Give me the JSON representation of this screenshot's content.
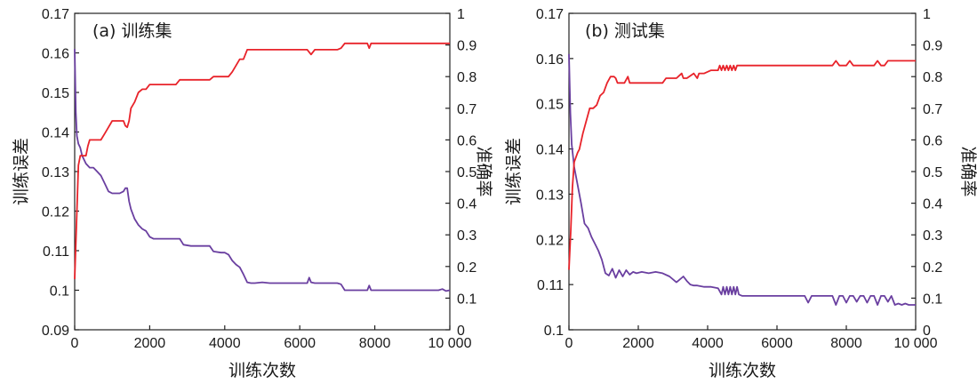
{
  "colors": {
    "error": "#6a3fa0",
    "accuracy": "#e8232a"
  },
  "chart_data": [
    {
      "type": "line",
      "title": "(a) 训练集",
      "xlabel": "训练次数",
      "ylabel_left": "训练误差",
      "ylabel_right": "准确率",
      "xlim": [
        0,
        10000
      ],
      "ylim_left": [
        0.09,
        0.17
      ],
      "ylim_right": [
        0,
        1
      ],
      "x_ticks": [
        "0",
        "2000",
        "4000",
        "6000",
        "8000",
        "10 000"
      ],
      "y_left_ticks": [
        "0.09",
        "0.1",
        "0.11",
        "0.12",
        "0.13",
        "0.14",
        "0.15",
        "0.16",
        "0.17"
      ],
      "y_right_ticks": [
        "0",
        "0.1",
        "0.2",
        "0.3",
        "0.4",
        "0.5",
        "0.6",
        "0.7",
        "0.8",
        "0.9",
        "1"
      ],
      "grid": false,
      "series": [
        {
          "axis": "left",
          "color_key": "error",
          "x": [
            0,
            30,
            60,
            100,
            150,
            200,
            300,
            400,
            500,
            600,
            700,
            800,
            900,
            1000,
            1100,
            1200,
            1300,
            1350,
            1400,
            1450,
            1500,
            1600,
            1700,
            1800,
            1900,
            2000,
            2100,
            2200,
            2500,
            2800,
            2900,
            3100,
            3400,
            3600,
            3700,
            3900,
            4000,
            4100,
            4200,
            4300,
            4400,
            4500,
            4600,
            4700,
            4800,
            5000,
            5200,
            5500,
            5800,
            6000,
            6200,
            6250,
            6300,
            6400,
            6600,
            6800,
            7000,
            7100,
            7200,
            7400,
            7600,
            7800,
            7850,
            7900,
            8000,
            8200,
            8500,
            8800,
            9100,
            9400,
            9700,
            9800,
            9900,
            10000
          ],
          "y": [
            0.161,
            0.145,
            0.139,
            0.137,
            0.136,
            0.134,
            0.132,
            0.131,
            0.131,
            0.13,
            0.129,
            0.127,
            0.125,
            0.1245,
            0.1245,
            0.1245,
            0.125,
            0.1258,
            0.1258,
            0.1225,
            0.1205,
            0.118,
            0.1165,
            0.1155,
            0.115,
            0.1135,
            0.113,
            0.113,
            0.113,
            0.113,
            0.1115,
            0.1112,
            0.1112,
            0.1112,
            0.1098,
            0.1095,
            0.1095,
            0.109,
            0.1075,
            0.1065,
            0.1058,
            0.104,
            0.102,
            0.1018,
            0.1018,
            0.102,
            0.1018,
            0.1018,
            0.1018,
            0.1018,
            0.1018,
            0.1032,
            0.102,
            0.1018,
            0.1018,
            0.1018,
            0.1018,
            0.1015,
            0.1,
            0.1,
            0.1,
            0.1,
            0.1012,
            0.1,
            0.1,
            0.1,
            0.1,
            0.1,
            0.1,
            0.1,
            0.1,
            0.1003,
            0.0998,
            0.1
          ]
        },
        {
          "axis": "right",
          "color_key": "accuracy",
          "x": [
            0,
            50,
            100,
            150,
            200,
            300,
            350,
            400,
            700,
            800,
            900,
            1000,
            1300,
            1350,
            1400,
            1450,
            1500,
            1600,
            1700,
            1800,
            1900,
            2000,
            2100,
            2200,
            2700,
            2800,
            2900,
            3600,
            3700,
            3800,
            4100,
            4200,
            4300,
            4400,
            4500,
            4600,
            6000,
            6200,
            6300,
            6400,
            6600,
            7000,
            7100,
            7200,
            7700,
            7800,
            7850,
            7900,
            8000,
            8500,
            10000
          ],
          "y": [
            0.16,
            0.34,
            0.52,
            0.55,
            0.55,
            0.55,
            0.58,
            0.6,
            0.6,
            0.62,
            0.64,
            0.66,
            0.66,
            0.645,
            0.64,
            0.66,
            0.7,
            0.72,
            0.75,
            0.76,
            0.76,
            0.775,
            0.775,
            0.775,
            0.775,
            0.79,
            0.79,
            0.79,
            0.8,
            0.8,
            0.8,
            0.815,
            0.835,
            0.855,
            0.855,
            0.885,
            0.885,
            0.885,
            0.87,
            0.885,
            0.885,
            0.885,
            0.89,
            0.905,
            0.905,
            0.905,
            0.89,
            0.905,
            0.905,
            0.905,
            0.905
          ]
        }
      ]
    },
    {
      "type": "line",
      "title": "(b) 测试集",
      "xlabel": "训练次数",
      "ylabel_left": "训练误差",
      "ylabel_right": "准确率",
      "xlim": [
        0,
        10000
      ],
      "ylim_left": [
        0.1,
        0.17
      ],
      "ylim_right": [
        0,
        1
      ],
      "x_ticks": [
        "0",
        "2000",
        "4000",
        "6000",
        "8000",
        "10 000"
      ],
      "y_left_ticks": [
        "0.1",
        "0.11",
        "0.12",
        "0.13",
        "0.14",
        "0.15",
        "0.16",
        "0.17"
      ],
      "y_right_ticks": [
        "0",
        "0.1",
        "0.2",
        "0.3",
        "0.4",
        "0.5",
        "0.6",
        "0.7",
        "0.8",
        "0.9",
        "1"
      ],
      "grid": false,
      "series": [
        {
          "axis": "left",
          "color_key": "error",
          "x": [
            0,
            40,
            80,
            150,
            250,
            350,
            450,
            550,
            650,
            750,
            850,
            950,
            1050,
            1150,
            1250,
            1350,
            1450,
            1550,
            1650,
            1750,
            1850,
            1950,
            2100,
            2300,
            2500,
            2700,
            2900,
            3100,
            3300,
            3400,
            3500,
            3600,
            3700,
            3900,
            4100,
            4300,
            4400,
            4450,
            4500,
            4550,
            4600,
            4650,
            4700,
            4750,
            4800,
            4850,
            4900,
            5000,
            5300,
            5600,
            6000,
            6400,
            6800,
            6900,
            7000,
            7100,
            7400,
            7600,
            7700,
            7800,
            7900,
            8000,
            8100,
            8200,
            8300,
            8400,
            8500,
            8600,
            8700,
            8800,
            8900,
            9000,
            9100,
            9200,
            9300,
            9400,
            9500,
            9600,
            9700,
            9800,
            10000
          ],
          "y": [
            0.161,
            0.148,
            0.141,
            0.136,
            0.132,
            0.128,
            0.1235,
            0.1225,
            0.1205,
            0.119,
            0.1175,
            0.1155,
            0.1125,
            0.112,
            0.1135,
            0.1115,
            0.1132,
            0.1118,
            0.1132,
            0.1122,
            0.1128,
            0.1125,
            0.1128,
            0.1125,
            0.1128,
            0.1125,
            0.1118,
            0.1105,
            0.1118,
            0.1108,
            0.11,
            0.1098,
            0.1098,
            0.1095,
            0.1095,
            0.1092,
            0.1078,
            0.1095,
            0.1078,
            0.1095,
            0.1078,
            0.1095,
            0.1078,
            0.1095,
            0.1078,
            0.1095,
            0.1078,
            0.1075,
            0.1075,
            0.1075,
            0.1075,
            0.1075,
            0.1075,
            0.106,
            0.1075,
            0.1075,
            0.1075,
            0.1075,
            0.1055,
            0.1075,
            0.1075,
            0.106,
            0.1075,
            0.1075,
            0.1062,
            0.1075,
            0.1075,
            0.106,
            0.1075,
            0.1075,
            0.1055,
            0.1075,
            0.1075,
            0.1062,
            0.1075,
            0.1055,
            0.1058,
            0.1055,
            0.1058,
            0.1055,
            0.1055
          ]
        },
        {
          "axis": "right",
          "color_key": "accuracy",
          "x": [
            0,
            50,
            100,
            150,
            250,
            300,
            400,
            500,
            600,
            700,
            800,
            900,
            1000,
            1100,
            1200,
            1300,
            1350,
            1400,
            1600,
            1700,
            1750,
            1800,
            2000,
            2200,
            2700,
            2800,
            2900,
            3100,
            3250,
            3300,
            3400,
            3600,
            3700,
            3750,
            3800,
            3900,
            4100,
            4300,
            4350,
            4400,
            4450,
            4500,
            4550,
            4600,
            4650,
            4700,
            4750,
            4800,
            4850,
            4900,
            5000,
            6000,
            6900,
            7000,
            7100,
            7600,
            7700,
            7800,
            7900,
            8000,
            8100,
            8200,
            8700,
            8800,
            8900,
            9000,
            9100,
            9200,
            9300,
            9400,
            9500,
            9600,
            10000
          ],
          "y": [
            0.19,
            0.31,
            0.45,
            0.53,
            0.56,
            0.57,
            0.62,
            0.66,
            0.7,
            0.7,
            0.71,
            0.74,
            0.75,
            0.78,
            0.8,
            0.8,
            0.795,
            0.78,
            0.78,
            0.8,
            0.78,
            0.78,
            0.78,
            0.78,
            0.78,
            0.795,
            0.795,
            0.795,
            0.81,
            0.795,
            0.795,
            0.81,
            0.795,
            0.81,
            0.81,
            0.81,
            0.82,
            0.82,
            0.835,
            0.82,
            0.835,
            0.82,
            0.835,
            0.82,
            0.835,
            0.82,
            0.835,
            0.82,
            0.835,
            0.835,
            0.835,
            0.835,
            0.835,
            0.835,
            0.835,
            0.835,
            0.85,
            0.835,
            0.835,
            0.835,
            0.85,
            0.835,
            0.835,
            0.835,
            0.85,
            0.835,
            0.835,
            0.85,
            0.85,
            0.85,
            0.85,
            0.85,
            0.85
          ]
        }
      ]
    }
  ]
}
